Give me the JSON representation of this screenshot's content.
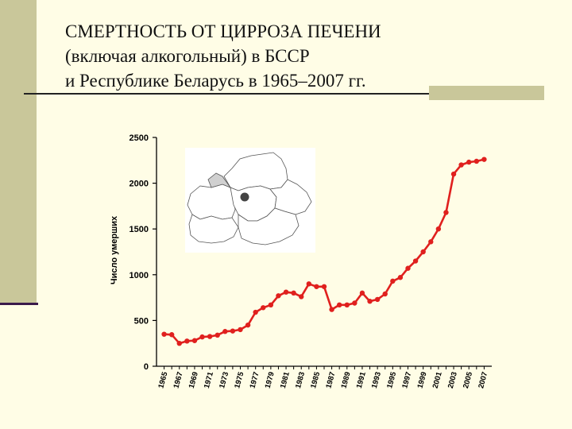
{
  "title": {
    "line1": "СМЕРТНОСТЬ ОТ ЦИРРОЗА ПЕЧЕНИ",
    "line2": "(включая алкогольный) в БССР",
    "line3": "и Республике Беларусь в 1965–2007 гг."
  },
  "colors": {
    "background": "#fffde6",
    "accent_bar": "#c9c79a",
    "series": "#e0201e"
  },
  "map_icon": "belarus-map-icon",
  "chart_data": {
    "type": "line",
    "title": "",
    "xlabel": "",
    "ylabel": "Число умерших",
    "ylim": [
      0,
      2500
    ],
    "yticks": [
      0,
      500,
      1000,
      1500,
      2000,
      2500
    ],
    "xtick_labels": [
      "1965",
      "1967",
      "1969",
      "1971",
      "1973",
      "1975",
      "1977",
      "1979",
      "1981",
      "1983",
      "1985",
      "1987",
      "1989",
      "1991",
      "1993",
      "1995",
      "1997",
      "1999",
      "2001",
      "2003",
      "2005",
      "2007"
    ],
    "grid": false,
    "series": [
      {
        "name": "",
        "x": [
          1965,
          1966,
          1967,
          1968,
          1969,
          1970,
          1971,
          1972,
          1973,
          1974,
          1975,
          1976,
          1977,
          1978,
          1979,
          1980,
          1981,
          1982,
          1983,
          1984,
          1985,
          1986,
          1987,
          1988,
          1989,
          1990,
          1991,
          1992,
          1993,
          1994,
          1995,
          1996,
          1997,
          1998,
          1999,
          2000,
          2001,
          2002,
          2003,
          2004,
          2005,
          2006,
          2007
        ],
        "values": [
          350,
          345,
          250,
          275,
          280,
          320,
          325,
          340,
          380,
          385,
          400,
          450,
          590,
          640,
          670,
          770,
          810,
          800,
          760,
          900,
          870,
          870,
          620,
          670,
          670,
          690,
          800,
          710,
          730,
          790,
          930,
          970,
          1070,
          1150,
          1250,
          1360,
          1500,
          1680,
          2100,
          2200,
          2230,
          2240,
          2260
        ]
      }
    ]
  }
}
